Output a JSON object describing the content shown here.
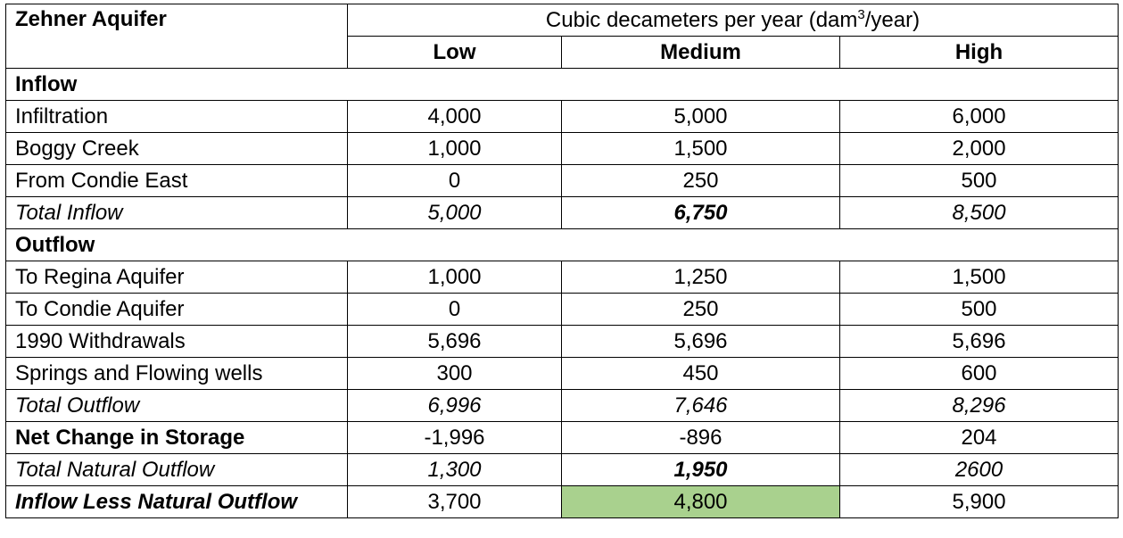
{
  "table": {
    "title": "Zehner Aquifer",
    "unit_prefix": "Cubic decameters per year (dam",
    "unit_sup": "3",
    "unit_suffix": "/year)",
    "columns": [
      "Low",
      "Medium",
      "High"
    ],
    "rows": [
      {
        "label": "Inflow",
        "values": [
          "",
          "",
          ""
        ],
        "style": "section"
      },
      {
        "label": "Infiltration",
        "values": [
          "4,000",
          "5,000",
          "6,000"
        ],
        "style": "normal"
      },
      {
        "label": "Boggy Creek",
        "values": [
          "1,000",
          "1,500",
          "2,000"
        ],
        "style": "normal"
      },
      {
        "label": "From Condie East",
        "values": [
          "0",
          "250",
          "500"
        ],
        "style": "normal"
      },
      {
        "label": "Total Inflow",
        "values": [
          "5,000",
          "6,750",
          "8,500"
        ],
        "style": "italic",
        "bold_cells": [
          1
        ]
      },
      {
        "label": "Outflow",
        "values": [
          "",
          "",
          ""
        ],
        "style": "section"
      },
      {
        "label": "To Regina Aquifer",
        "values": [
          "1,000",
          "1,250",
          "1,500"
        ],
        "style": "normal"
      },
      {
        "label": "To Condie Aquifer",
        "values": [
          "0",
          "250",
          "500"
        ],
        "style": "normal"
      },
      {
        "label": "1990 Withdrawals",
        "values": [
          "5,696",
          "5,696",
          "5,696"
        ],
        "style": "normal"
      },
      {
        "label": "Springs and Flowing wells",
        "values": [
          "300",
          "450",
          "600"
        ],
        "style": "normal"
      },
      {
        "label": "Total Outflow",
        "values": [
          "6,996",
          "7,646",
          "8,296"
        ],
        "style": "italic"
      },
      {
        "label": "Net Change in Storage",
        "values": [
          "-1,996",
          "-896",
          "204"
        ],
        "style": "bold-label"
      },
      {
        "label": "Total Natural Outflow",
        "values": [
          "1,300",
          "1,950",
          "2600"
        ],
        "style": "italic",
        "bold_cells": [
          1
        ]
      },
      {
        "label": "Inflow Less Natural Outflow",
        "values": [
          "3,700",
          "4,800",
          "5,900"
        ],
        "style": "bold-italic-label",
        "highlight_cells": [
          1
        ]
      }
    ],
    "highlight_color": "#a9d18e"
  }
}
